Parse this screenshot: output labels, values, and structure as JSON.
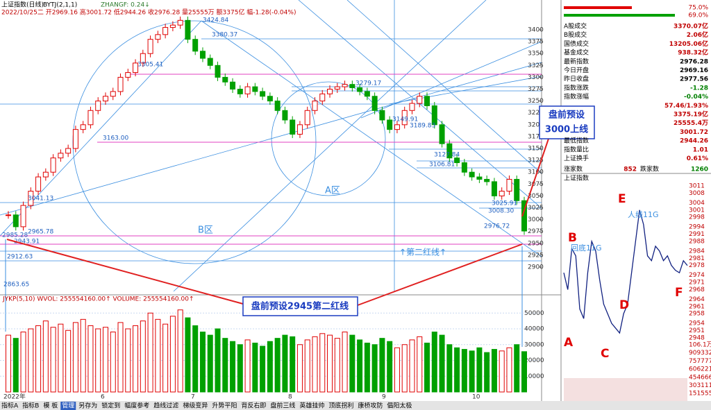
{
  "header": {
    "line1": [
      "上证指数(日线)",
      "BYTJ(2,1,1)",
      "ZHANGF: 0.24↓"
    ],
    "line2": "2022/10/25二 开2969.16 高3001.72 低2944.26 收2976.28 量25555万 额3375亿 幅-1.28(-0.04%)"
  },
  "kline": {
    "closes": [
      3010,
      2985,
      3030,
      3060,
      3090,
      3100,
      3130,
      3140,
      3150,
      3190,
      3200,
      3230,
      3250,
      3260,
      3270,
      3300,
      3310,
      3330,
      3350,
      3380,
      3390,
      3405,
      3410,
      3420,
      3380,
      3355,
      3340,
      3325,
      3300,
      3290,
      3275,
      3265,
      3280,
      3270,
      3260,
      3250,
      3230,
      3210,
      3180,
      3200,
      3230,
      3250,
      3265,
      3275,
      3280,
      3285,
      3278,
      3270,
      3260,
      3230,
      3210,
      3190,
      3200,
      3230,
      3245,
      3260,
      3240,
      3200,
      3160,
      3130,
      3120,
      3100,
      3090,
      3085,
      3080,
      3050,
      3060,
      3085,
      3040,
      2976
    ],
    "volumes": [
      36000,
      34000,
      38000,
      40000,
      42000,
      45000,
      41000,
      43000,
      39000,
      44000,
      46000,
      42000,
      40000,
      41000,
      38000,
      44000,
      40000,
      42000,
      45000,
      50000,
      46000,
      43000,
      48000,
      52000,
      47000,
      42000,
      38000,
      36000,
      40000,
      34000,
      32000,
      30000,
      33000,
      31000,
      29000,
      32000,
      34000,
      36000,
      35000,
      30000,
      33000,
      35000,
      37000,
      36000,
      34000,
      38000,
      36000,
      33000,
      31000,
      30000,
      34000,
      32000,
      28000,
      30000,
      33000,
      35000,
      31000,
      38000,
      36000,
      30000,
      28000,
      27000,
      26000,
      28000,
      25000,
      27000,
      26000,
      28000,
      30000,
      25555
    ],
    "price_ticks": [
      3400,
      3375,
      3350,
      3325,
      3300,
      3275,
      3250,
      3225,
      3200,
      3175,
      3150,
      3125,
      3100,
      3075,
      3050,
      3025,
      3000,
      2975,
      2950,
      2925,
      2900
    ],
    "volume_ticks": [
      50000,
      40000,
      30000,
      20000,
      10000
    ],
    "volume_header": "JYKP(5,10)  WVOL: 255554160.00↑  VOLUME: 255554160.00↑",
    "x_labels": [
      "2022年",
      "6",
      "7",
      "8",
      "9",
      "10"
    ],
    "price_annotations": [
      "3424.84",
      "3380.37",
      "3305.41",
      "3163.00",
      "3279.17",
      "3189.83",
      "3149.91",
      "3127.84",
      "3106.81",
      "3025.91",
      "3008.30",
      "2976.72",
      "2965.78",
      "2985.28",
      "2943.91",
      "2912.63",
      "2863.65",
      "3041.13"
    ],
    "zone_labels": [
      "A区",
      "B区"
    ],
    "second_red_line": "↑第二红线↑",
    "callouts": [
      "盘前预设",
      "3000上线",
      "盘前预设2945第二红线"
    ]
  },
  "stats": {
    "bars": [
      "75.0%",
      "69.0%"
    ],
    "rows": [
      {
        "label": "A股成交",
        "value": "3370.07亿"
      },
      {
        "label": "B股成交",
        "value": "2.06亿"
      },
      {
        "label": "国债成交",
        "value": "13205.06亿"
      },
      {
        "label": "基金成交",
        "value": "938.32亿"
      },
      {
        "label": "最新指数",
        "value": 2976.28
      },
      {
        "label": "今日开盘",
        "value": 2969.16
      },
      {
        "label": "昨日收盘",
        "value": 2977.56
      },
      {
        "label": "指数涨跌",
        "value": -1.28
      },
      {
        "label": "指数涨幅",
        "value": "-0.04%"
      },
      {
        "value": "57.46/1.93%"
      },
      {
        "value": "3375.19亿"
      },
      {
        "value": "25555.4万"
      },
      {
        "value": 3001.72
      },
      {
        "label": "最低指数",
        "value": 2944.26
      },
      {
        "label": "指数量比",
        "value": 1.01
      },
      {
        "label": "上证换手",
        "value": "0.61%"
      }
    ],
    "up_label": "涨家数",
    "up_count": 852,
    "down_label": "跌家数",
    "down_count": 1260
  },
  "intraday": {
    "title": "上证指数",
    "prices": [
      2975,
      2968,
      2985,
      2982,
      2960,
      2956,
      2975,
      2988,
      2984,
      2972,
      2962,
      2958,
      2954,
      2952,
      2950,
      2958,
      2962,
      2975,
      2988,
      3001,
      2995,
      2982,
      2980,
      2986,
      2984,
      2980,
      2982,
      2978,
      2976,
      2975,
      2980,
      2978
    ],
    "price_ticks": [
      3011,
      3008,
      3004,
      3001,
      2998,
      2994,
      2991,
      2988,
      2984,
      2981,
      2978,
      2974,
      2971,
      2968,
      2964,
      2961,
      2958,
      2954,
      2951,
      2948
    ],
    "volume_labels": [
      "106.1万",
      909332,
      757777,
      606221,
      454666,
      303111,
      151555
    ],
    "points": [
      "A",
      "B",
      "C",
      "D",
      "E",
      "F"
    ],
    "notes": [
      "回底11G",
      "人线11G"
    ]
  },
  "toolbar": [
    "指标A",
    "指标B",
    "模 板",
    "管理",
    "另存为",
    "锁定到",
    "幅度参考",
    "趋线过滤",
    "梯级变异",
    "升势平阳",
    "背反右即",
    "盘前三线",
    "英雄挂帅",
    "顶底拐利",
    "康桥攻防",
    "倡阳太极"
  ]
}
